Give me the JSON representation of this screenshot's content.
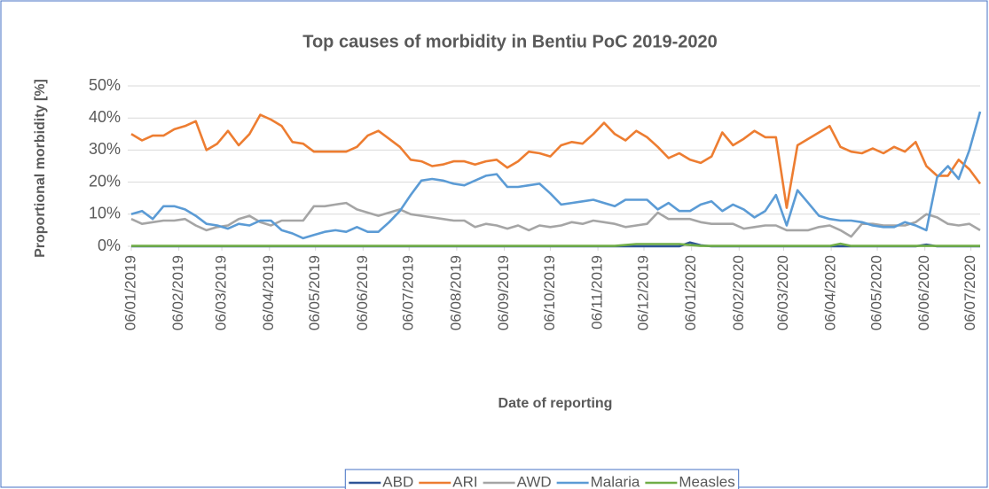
{
  "chart_data": {
    "type": "line",
    "title": "Top causes of morbidity in Bentiu PoC 2019-2020",
    "xlabel": "Date of reporting",
    "ylabel": "Proportional morbidity [%]",
    "x": [
      "2019-01-06",
      "2019-01-13",
      "2019-01-20",
      "2019-01-27",
      "2019-02-03",
      "2019-02-10",
      "2019-02-17",
      "2019-02-24",
      "2019-03-03",
      "2019-03-10",
      "2019-03-17",
      "2019-03-24",
      "2019-03-31",
      "2019-04-07",
      "2019-04-14",
      "2019-04-21",
      "2019-04-28",
      "2019-05-05",
      "2019-05-12",
      "2019-05-19",
      "2019-05-26",
      "2019-06-02",
      "2019-06-09",
      "2019-06-16",
      "2019-06-23",
      "2019-06-30",
      "2019-07-07",
      "2019-07-14",
      "2019-07-21",
      "2019-07-28",
      "2019-08-04",
      "2019-08-11",
      "2019-08-18",
      "2019-08-25",
      "2019-09-01",
      "2019-09-08",
      "2019-09-15",
      "2019-09-22",
      "2019-09-29",
      "2019-10-06",
      "2019-10-13",
      "2019-10-20",
      "2019-10-27",
      "2019-11-03",
      "2019-11-10",
      "2019-11-17",
      "2019-11-24",
      "2019-12-01",
      "2019-12-08",
      "2019-12-15",
      "2019-12-22",
      "2019-12-29",
      "2020-01-05",
      "2020-01-12",
      "2020-01-19",
      "2020-01-26",
      "2020-02-02",
      "2020-02-09",
      "2020-02-16",
      "2020-02-23",
      "2020-03-01",
      "2020-03-08",
      "2020-03-15",
      "2020-03-22",
      "2020-03-29",
      "2020-04-05",
      "2020-04-12",
      "2020-04-19",
      "2020-04-26",
      "2020-05-03",
      "2020-05-10",
      "2020-05-17",
      "2020-05-24",
      "2020-05-31",
      "2020-06-07",
      "2020-06-14",
      "2020-06-21",
      "2020-06-28",
      "2020-07-05",
      "2020-07-12"
    ],
    "xlim": [
      "2019-01-06",
      "2020-07-12"
    ],
    "xticks": [
      {
        "value": "2019-01-06",
        "label": "06/01/2019"
      },
      {
        "value": "2019-02-06",
        "label": "06/02/2019"
      },
      {
        "value": "2019-03-06",
        "label": "06/03/2019"
      },
      {
        "value": "2019-04-06",
        "label": "06/04/2019"
      },
      {
        "value": "2019-05-06",
        "label": "06/05/2019"
      },
      {
        "value": "2019-06-06",
        "label": "06/06/2019"
      },
      {
        "value": "2019-07-06",
        "label": "06/07/2019"
      },
      {
        "value": "2019-08-06",
        "label": "06/08/2019"
      },
      {
        "value": "2019-09-06",
        "label": "06/09/2019"
      },
      {
        "value": "2019-10-06",
        "label": "06/10/2019"
      },
      {
        "value": "2019-11-06",
        "label": "06/11/2019"
      },
      {
        "value": "2019-12-06",
        "label": "06/12/2019"
      },
      {
        "value": "2020-01-06",
        "label": "06/01/2020"
      },
      {
        "value": "2020-02-06",
        "label": "06/02/2020"
      },
      {
        "value": "2020-03-06",
        "label": "06/03/2020"
      },
      {
        "value": "2020-04-06",
        "label": "06/04/2020"
      },
      {
        "value": "2020-05-06",
        "label": "06/05/2020"
      },
      {
        "value": "2020-06-06",
        "label": "06/06/2020"
      },
      {
        "value": "2020-07-06",
        "label": "06/07/2020"
      }
    ],
    "ylim": [
      0,
      50
    ],
    "yticks": [
      {
        "value": 0,
        "label": "0%"
      },
      {
        "value": 10,
        "label": "10%"
      },
      {
        "value": 20,
        "label": "20%"
      },
      {
        "value": 30,
        "label": "30%"
      },
      {
        "value": 40,
        "label": "40%"
      },
      {
        "value": 50,
        "label": "50%"
      }
    ],
    "grid": true,
    "legend": "bottom",
    "series": [
      {
        "name": "ABD",
        "color": "#2f5597",
        "values": [
          0,
          0,
          0,
          0,
          0,
          0,
          0,
          0,
          0,
          0,
          0,
          0,
          0,
          0,
          0,
          0,
          0,
          0,
          0,
          0,
          0,
          0,
          0,
          0,
          0,
          0,
          0,
          0,
          0,
          0,
          0,
          0,
          0,
          0,
          0,
          0,
          0,
          0,
          0,
          0,
          0,
          0,
          0,
          0,
          0,
          0,
          0,
          0,
          0,
          0,
          0,
          0,
          1.2,
          0.3,
          0,
          0,
          0,
          0,
          0,
          0,
          0,
          0,
          0,
          0,
          0,
          0,
          0,
          0,
          0,
          0,
          0,
          0,
          0,
          0,
          0.5,
          0,
          0,
          0,
          0,
          0
        ]
      },
      {
        "name": "ARI",
        "color": "#ed7d31",
        "values": [
          35,
          33,
          34.5,
          34.5,
          36.5,
          37.5,
          39,
          30,
          32,
          36,
          31.5,
          35,
          41,
          39.5,
          37.5,
          32.5,
          32,
          29.5,
          29.5,
          29.5,
          29.5,
          31,
          34.5,
          36,
          33.5,
          31,
          27,
          26.5,
          25,
          25.5,
          26.5,
          26.5,
          25.5,
          26.5,
          27,
          24.5,
          26.5,
          29.5,
          29,
          28,
          31.5,
          32.5,
          32,
          35,
          38.5,
          35,
          33,
          36,
          34,
          31,
          27.5,
          29,
          27,
          26,
          28,
          35.5,
          31.5,
          33.5,
          36,
          34,
          34,
          12,
          31.5,
          33.5,
          35.5,
          37.5,
          31,
          29.5,
          29,
          30.5,
          29,
          31,
          29.5,
          32.5,
          25,
          22,
          22,
          27,
          24,
          19.5
        ]
      },
      {
        "name": "AWD",
        "color": "#a5a5a5",
        "values": [
          8.5,
          7,
          7.5,
          8,
          8,
          8.5,
          6.5,
          5,
          6,
          6.5,
          8.5,
          9.5,
          7.5,
          6.5,
          8,
          8,
          8,
          12.5,
          12.5,
          13,
          13.5,
          11.5,
          10.5,
          9.5,
          10.5,
          11.5,
          10,
          9.5,
          9,
          8.5,
          8,
          8,
          6,
          7,
          6.5,
          5.5,
          6.5,
          5,
          6.5,
          6,
          6.5,
          7.5,
          7,
          8,
          7.5,
          7,
          6,
          6.5,
          7,
          10.5,
          8.5,
          8.5,
          8.5,
          7.5,
          7,
          7,
          7,
          5.5,
          6,
          6.5,
          6.5,
          5,
          5,
          5,
          6,
          6.5,
          5,
          3,
          7,
          7,
          6.5,
          6.5,
          6.5,
          7.5,
          10,
          9,
          7,
          6.5,
          7,
          5
        ]
      },
      {
        "name": "Malaria",
        "color": "#5b9bd5",
        "values": [
          10,
          11,
          8.5,
          12.5,
          12.5,
          11.5,
          9.5,
          7,
          6.5,
          5.5,
          7,
          6.5,
          8,
          8,
          5,
          4,
          2.5,
          3.5,
          4.5,
          5,
          4.5,
          6,
          4.5,
          4.5,
          7.5,
          11,
          16,
          20.5,
          21,
          20.5,
          19.5,
          19,
          20.5,
          22,
          22.5,
          18.5,
          18.5,
          19,
          19.5,
          16.5,
          13,
          13.5,
          14,
          14.5,
          13.5,
          12.5,
          14.5,
          14.5,
          14.5,
          11.5,
          13.5,
          11,
          11,
          13,
          14,
          11,
          13,
          11.5,
          9,
          11,
          16,
          6.5,
          17.5,
          13.5,
          9.5,
          8.5,
          8,
          8,
          7.5,
          6.5,
          6,
          6,
          7.5,
          6.5,
          5,
          21.5,
          25,
          21,
          30,
          42
        ]
      },
      {
        "name": "Measles",
        "color": "#70ad47",
        "values": [
          0.1,
          0.1,
          0.1,
          0.1,
          0.1,
          0.1,
          0.1,
          0.1,
          0.1,
          0.1,
          0.1,
          0.1,
          0.1,
          0.1,
          0.1,
          0.1,
          0.1,
          0.1,
          0.1,
          0.1,
          0.1,
          0.1,
          0.1,
          0.1,
          0.1,
          0.1,
          0.1,
          0.1,
          0.1,
          0.1,
          0.1,
          0.1,
          0.1,
          0.1,
          0.1,
          0.1,
          0.1,
          0.1,
          0.1,
          0.1,
          0.1,
          0.1,
          0.1,
          0.1,
          0.1,
          0.1,
          0.4,
          0.7,
          0.7,
          0.7,
          0.7,
          0.7,
          0.4,
          0.1,
          0.1,
          0.1,
          0.1,
          0.1,
          0.1,
          0.1,
          0.1,
          0.1,
          0.1,
          0.1,
          0.1,
          0.1,
          0.8,
          0.1,
          0.1,
          0.1,
          0.1,
          0.1,
          0.1,
          0.1,
          0.1,
          0.1,
          0.1,
          0.1,
          0.1,
          0.1
        ]
      }
    ]
  }
}
